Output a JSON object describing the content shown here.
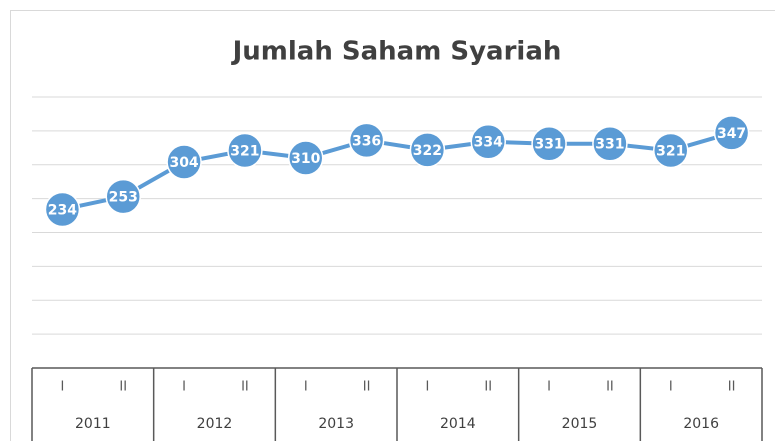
{
  "chart_data": {
    "type": "line",
    "title": "Jumlah Saham Syariah",
    "categories": [
      "I",
      "II",
      "I",
      "II",
      "I",
      "II",
      "I",
      "II",
      "I",
      "II",
      "I",
      "II"
    ],
    "category_groups": [
      "2011",
      "2012",
      "2013",
      "2014",
      "2015",
      "2016"
    ],
    "series": [
      {
        "name": "Jumlah Saham Syariah",
        "color": "#5b9bd5",
        "values": [
          234,
          253,
          304,
          321,
          310,
          336,
          322,
          334,
          331,
          331,
          321,
          347
        ]
      }
    ],
    "ylim": [
      0,
      400
    ],
    "yticks": [
      0,
      50,
      100,
      150,
      200,
      250,
      300,
      350,
      400
    ],
    "grid": true
  }
}
